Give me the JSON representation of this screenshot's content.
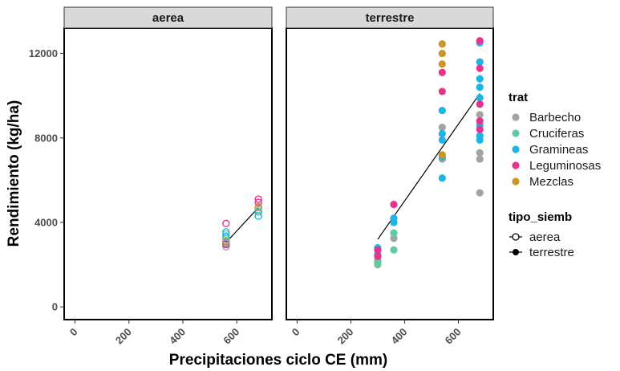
{
  "chart_data": {
    "type": "scatter",
    "title": "",
    "xlabel": "Precipitaciones ciclo CE (mm)",
    "ylabel": "Rendimiento (kg/ha)",
    "xlim": [
      -40,
      730
    ],
    "ylim": [
      -600,
      13200
    ],
    "xticks": [
      0,
      200,
      400,
      600
    ],
    "yticks": [
      0,
      4000,
      8000,
      12000
    ],
    "facets": [
      "aerea",
      "terrestre"
    ],
    "colors": {
      "Barbecho": "#a3a3a3",
      "Cruciferas": "#5ecba1",
      "Gramineas": "#1fb4e6",
      "Leguminosas": "#e6338c",
      "Mezclas": "#cc9622"
    },
    "legend": {
      "placement": "right",
      "trat_title": "trat",
      "trat_items": [
        "Barbecho",
        "Cruciferas",
        "Gramineas",
        "Leguminosas",
        "Mezclas"
      ],
      "tipo_title": "tipo_siemb",
      "tipo_items": [
        "aerea",
        "terrestre"
      ]
    },
    "series": [
      {
        "panel": 0,
        "trat": "Barbecho",
        "shape": "open",
        "x": [
          560,
          560,
          680
        ],
        "y": [
          2850,
          3050,
          4750
        ]
      },
      {
        "panel": 0,
        "trat": "Cruciferas",
        "shape": "open",
        "x": [
          560,
          560,
          680
        ],
        "y": [
          3250,
          3450,
          4600
        ]
      },
      {
        "panel": 0,
        "trat": "Gramineas",
        "shape": "open",
        "x": [
          560,
          560,
          560,
          680,
          680
        ],
        "y": [
          3000,
          3350,
          3550,
          4300,
          4500
        ]
      },
      {
        "panel": 0,
        "trat": "Leguminosas",
        "shape": "open",
        "x": [
          560,
          560,
          680,
          680
        ],
        "y": [
          3950,
          2950,
          4950,
          5100
        ]
      },
      {
        "panel": 0,
        "trat": "Mezclas",
        "shape": "open",
        "x": [
          560,
          680
        ],
        "y": [
          3100,
          4700
        ]
      },
      {
        "panel": 1,
        "trat": "Barbecho",
        "shape": "filled",
        "x": [
          300,
          300,
          360,
          540,
          540,
          680,
          680,
          680,
          680
        ],
        "y": [
          2000,
          2150,
          3250,
          7000,
          8500,
          5400,
          7000,
          7300,
          9100
        ]
      },
      {
        "panel": 1,
        "trat": "Cruciferas",
        "shape": "filled",
        "x": [
          300,
          300,
          360,
          360
        ],
        "y": [
          2050,
          2250,
          2700,
          3500
        ]
      },
      {
        "panel": 1,
        "trat": "Gramineas",
        "shape": "filled",
        "x": [
          300,
          300,
          360,
          360,
          540,
          540,
          540,
          540,
          540,
          680,
          680,
          680,
          680,
          680,
          680,
          680,
          680
        ],
        "y": [
          2500,
          2800,
          4000,
          4200,
          6100,
          7100,
          7900,
          8200,
          9300,
          7900,
          8100,
          8600,
          9900,
          10400,
          10800,
          11600,
          12500
        ]
      },
      {
        "panel": 1,
        "trat": "Leguminosas",
        "shape": "filled",
        "x": [
          300,
          300,
          360,
          540,
          540,
          680,
          680,
          680,
          680,
          680
        ],
        "y": [
          2400,
          2700,
          4850,
          10200,
          11100,
          8400,
          8800,
          9600,
          11300,
          12600
        ]
      },
      {
        "panel": 1,
        "trat": "Mezclas",
        "shape": "filled",
        "x": [
          540,
          540,
          540,
          540
        ],
        "y": [
          11500,
          12000,
          12450,
          7200
        ]
      }
    ],
    "trendlines": [
      {
        "panel": 0,
        "x": [
          560,
          680
        ],
        "y": [
          3050,
          4700
        ]
      },
      {
        "panel": 1,
        "x": [
          300,
          680
        ],
        "y": [
          3200,
          10100
        ]
      }
    ]
  }
}
